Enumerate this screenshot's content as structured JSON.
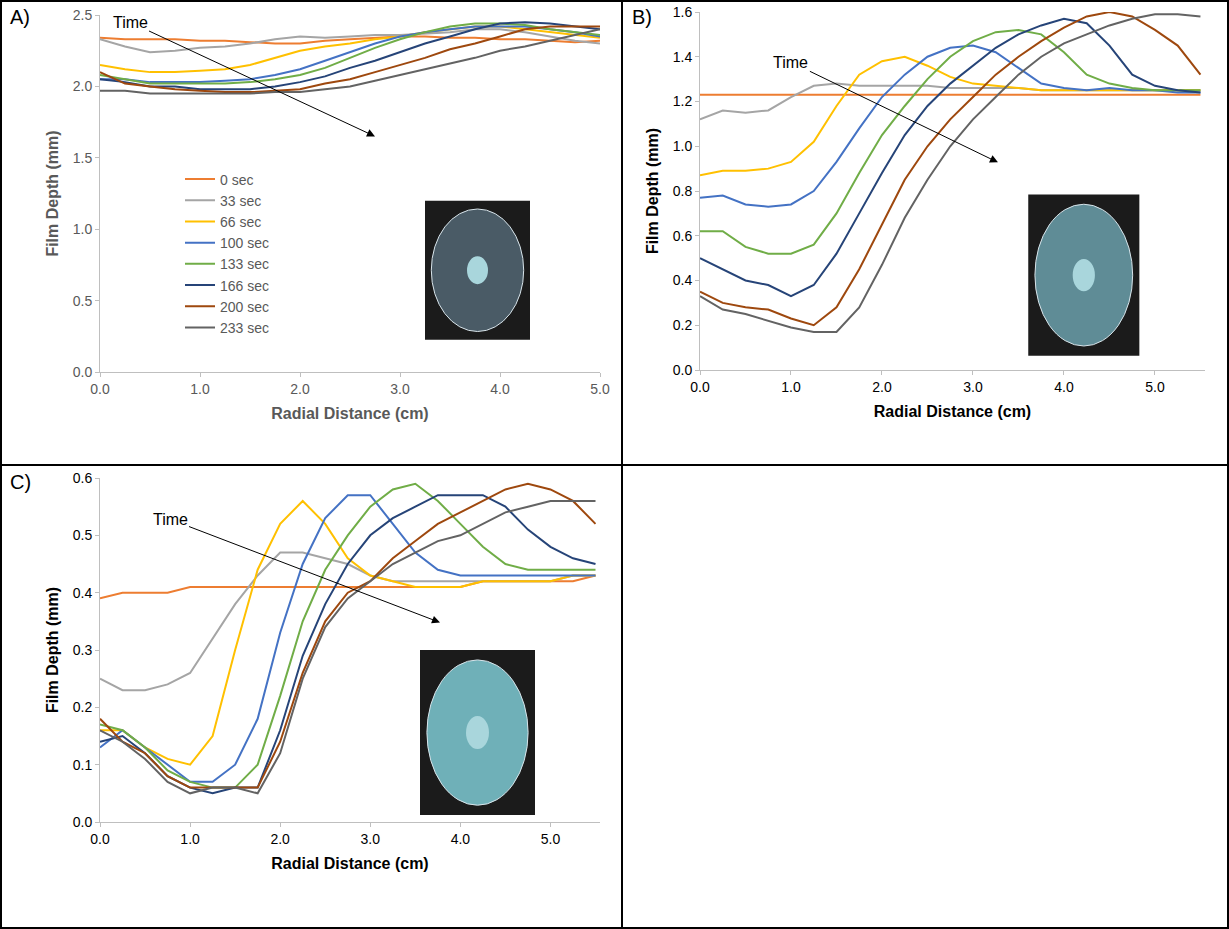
{
  "chart_data": [
    {
      "type": "line",
      "panel_label": "A)",
      "x_label": "Radial Distance (cm)",
      "y_label": "Film Depth (mm)",
      "annotation": "Time",
      "grid": false,
      "legend": "lower left",
      "xlim": [
        0,
        5
      ],
      "xticks": [
        {
          "value": 0,
          "label": "0.0"
        },
        {
          "value": 1,
          "label": "1.0"
        },
        {
          "value": 2,
          "label": "2.0"
        },
        {
          "value": 3,
          "label": "3.0"
        },
        {
          "value": 4,
          "label": "4.0"
        },
        {
          "value": 5,
          "label": "5.0"
        }
      ],
      "ylim": [
        0,
        2.5
      ],
      "yticks": [
        {
          "value": 0,
          "label": "0.0"
        },
        0.5,
        {
          "value": 1,
          "label": "1.0"
        },
        1.5,
        {
          "value": 2,
          "label": "2.0"
        },
        2.5
      ],
      "x": [
        0,
        0.25,
        0.5,
        0.75,
        1,
        1.25,
        1.5,
        1.75,
        2,
        2.25,
        2.5,
        2.75,
        3,
        3.25,
        3.5,
        3.75,
        4,
        4.25,
        4.5,
        4.75,
        5
      ],
      "series": [
        {
          "name": "0 sec",
          "color": "#ed7d31",
          "values": [
            2.34,
            2.33,
            2.33,
            2.33,
            2.32,
            2.32,
            2.31,
            2.3,
            2.3,
            2.32,
            2.33,
            2.34,
            2.35,
            2.35,
            2.34,
            2.34,
            2.33,
            2.33,
            2.32,
            2.31,
            2.32
          ]
        },
        {
          "name": "33 sec",
          "color": "#a5a5a5",
          "values": [
            2.33,
            2.28,
            2.24,
            2.25,
            2.27,
            2.28,
            2.3,
            2.33,
            2.35,
            2.34,
            2.35,
            2.36,
            2.36,
            2.37,
            2.38,
            2.4,
            2.4,
            2.38,
            2.35,
            2.32,
            2.3
          ]
        },
        {
          "name": "66 sec",
          "color": "#ffc000",
          "values": [
            2.15,
            2.12,
            2.1,
            2.1,
            2.11,
            2.12,
            2.15,
            2.2,
            2.25,
            2.28,
            2.3,
            2.33,
            2.35,
            2.38,
            2.4,
            2.42,
            2.42,
            2.4,
            2.38,
            2.36,
            2.34
          ]
        },
        {
          "name": "100 sec",
          "color": "#4472c4",
          "values": [
            2.05,
            2.05,
            2.03,
            2.03,
            2.03,
            2.04,
            2.05,
            2.08,
            2.12,
            2.18,
            2.24,
            2.3,
            2.35,
            2.38,
            2.4,
            2.42,
            2.42,
            2.42,
            2.4,
            2.38,
            2.35
          ]
        },
        {
          "name": "133 sec",
          "color": "#70ad47",
          "values": [
            2.08,
            2.05,
            2.02,
            2.02,
            2.02,
            2.02,
            2.03,
            2.05,
            2.08,
            2.13,
            2.2,
            2.27,
            2.33,
            2.38,
            2.42,
            2.44,
            2.44,
            2.43,
            2.4,
            2.38,
            2.36
          ]
        },
        {
          "name": "166 sec",
          "color": "#264478",
          "values": [
            2.05,
            2.03,
            2.0,
            2.0,
            1.98,
            1.98,
            1.98,
            2.0,
            2.03,
            2.07,
            2.13,
            2.18,
            2.24,
            2.3,
            2.35,
            2.4,
            2.44,
            2.45,
            2.44,
            2.42,
            2.4
          ]
        },
        {
          "name": "200 sec",
          "color": "#9e480e",
          "values": [
            2.1,
            2.02,
            2.0,
            1.98,
            1.97,
            1.96,
            1.96,
            1.97,
            1.98,
            2.02,
            2.05,
            2.1,
            2.15,
            2.2,
            2.26,
            2.3,
            2.35,
            2.4,
            2.42,
            2.42,
            2.42
          ]
        },
        {
          "name": "233 sec",
          "color": "#636363",
          "values": [
            1.97,
            1.97,
            1.95,
            1.95,
            1.95,
            1.95,
            1.95,
            1.96,
            1.96,
            1.98,
            2.0,
            2.04,
            2.08,
            2.12,
            2.16,
            2.2,
            2.25,
            2.28,
            2.32,
            2.36,
            2.4
          ]
        }
      ]
    },
    {
      "type": "line",
      "panel_label": "B)",
      "x_label": "Radial Distance (cm)",
      "y_label": "Film Depth (mm)",
      "annotation": "Time",
      "grid": false,
      "xlim": [
        0,
        5.55
      ],
      "xticks": [
        {
          "value": 0,
          "label": "0.0"
        },
        {
          "value": 1,
          "label": "1.0"
        },
        {
          "value": 2,
          "label": "2.0"
        },
        {
          "value": 3,
          "label": "3.0"
        },
        {
          "value": 4,
          "label": "4.0"
        },
        {
          "value": 5,
          "label": "5.0"
        }
      ],
      "ylim": [
        0,
        1.6
      ],
      "yticks": [
        {
          "value": 0,
          "label": "0.0"
        },
        0.2,
        0.4,
        0.6,
        0.8,
        {
          "value": 1,
          "label": "1.0"
        },
        1.2,
        1.4,
        1.6
      ],
      "x": [
        0,
        0.25,
        0.5,
        0.75,
        1,
        1.25,
        1.5,
        1.75,
        2,
        2.25,
        2.5,
        2.75,
        3,
        3.25,
        3.5,
        3.75,
        4,
        4.25,
        4.5,
        4.75,
        5,
        5.25,
        5.5
      ],
      "series": [
        {
          "name": "0 sec",
          "color": "#ed7d31",
          "values": [
            1.23,
            1.23,
            1.23,
            1.23,
            1.23,
            1.23,
            1.23,
            1.23,
            1.23,
            1.23,
            1.23,
            1.23,
            1.23,
            1.23,
            1.23,
            1.23,
            1.23,
            1.23,
            1.23,
            1.23,
            1.23,
            1.23,
            1.23
          ]
        },
        {
          "name": "33 sec",
          "color": "#a5a5a5",
          "values": [
            1.12,
            1.16,
            1.15,
            1.16,
            1.22,
            1.27,
            1.28,
            1.27,
            1.27,
            1.27,
            1.27,
            1.26,
            1.26,
            1.26,
            1.26,
            1.25,
            1.25,
            1.25,
            1.25,
            1.25,
            1.25,
            1.25,
            1.25
          ]
        },
        {
          "name": "66 sec",
          "color": "#ffc000",
          "values": [
            0.87,
            0.89,
            0.89,
            0.9,
            0.93,
            1.02,
            1.18,
            1.32,
            1.38,
            1.4,
            1.36,
            1.31,
            1.28,
            1.27,
            1.26,
            1.25,
            1.25,
            1.25,
            1.25,
            1.25,
            1.25,
            1.25,
            1.25
          ]
        },
        {
          "name": "100 sec",
          "color": "#4472c4",
          "values": [
            0.77,
            0.78,
            0.74,
            0.73,
            0.74,
            0.8,
            0.93,
            1.08,
            1.22,
            1.32,
            1.4,
            1.44,
            1.45,
            1.42,
            1.35,
            1.28,
            1.26,
            1.25,
            1.26,
            1.25,
            1.25,
            1.24,
            1.24
          ]
        },
        {
          "name": "133 sec",
          "color": "#70ad47",
          "values": [
            0.62,
            0.62,
            0.55,
            0.52,
            0.52,
            0.56,
            0.7,
            0.88,
            1.05,
            1.18,
            1.3,
            1.4,
            1.47,
            1.51,
            1.52,
            1.5,
            1.42,
            1.32,
            1.28,
            1.26,
            1.25,
            1.25,
            1.25
          ]
        },
        {
          "name": "166 sec",
          "color": "#264478",
          "values": [
            0.5,
            0.45,
            0.4,
            0.38,
            0.33,
            0.38,
            0.52,
            0.7,
            0.88,
            1.05,
            1.18,
            1.28,
            1.36,
            1.44,
            1.5,
            1.54,
            1.57,
            1.55,
            1.45,
            1.32,
            1.27,
            1.25,
            1.24
          ]
        },
        {
          "name": "200 sec",
          "color": "#9e480e",
          "values": [
            0.35,
            0.3,
            0.28,
            0.27,
            0.23,
            0.2,
            0.28,
            0.45,
            0.65,
            0.85,
            1.0,
            1.12,
            1.22,
            1.32,
            1.4,
            1.47,
            1.53,
            1.58,
            1.6,
            1.58,
            1.52,
            1.45,
            1.32
          ]
        },
        {
          "name": "233 sec",
          "color": "#636363",
          "values": [
            0.33,
            0.27,
            0.25,
            0.22,
            0.19,
            0.17,
            0.17,
            0.28,
            0.47,
            0.68,
            0.85,
            1.0,
            1.12,
            1.22,
            1.32,
            1.4,
            1.46,
            1.5,
            1.54,
            1.57,
            1.59,
            1.59,
            1.58
          ]
        }
      ]
    },
    {
      "type": "line",
      "panel_label": "C)",
      "x_label": "Radial Distance (cm)",
      "y_label": "Film Depth (mm)",
      "annotation": "Time",
      "grid": false,
      "xlim": [
        0,
        5.55
      ],
      "xticks": [
        {
          "value": 0,
          "label": "0.0"
        },
        {
          "value": 1,
          "label": "1.0"
        },
        {
          "value": 2,
          "label": "2.0"
        },
        {
          "value": 3,
          "label": "3.0"
        },
        {
          "value": 4,
          "label": "4.0"
        },
        {
          "value": 5,
          "label": "5.0"
        }
      ],
      "ylim": [
        0,
        0.6
      ],
      "yticks": [
        {
          "value": 0,
          "label": "0.0"
        },
        0.1,
        0.2,
        0.3,
        0.4,
        0.5,
        0.6
      ],
      "x": [
        0,
        0.25,
        0.5,
        0.75,
        1,
        1.25,
        1.5,
        1.75,
        2,
        2.25,
        2.5,
        2.75,
        3,
        3.25,
        3.5,
        3.75,
        4,
        4.25,
        4.5,
        4.75,
        5,
        5.25,
        5.5
      ],
      "series": [
        {
          "name": "0 sec",
          "color": "#ed7d31",
          "values": [
            0.39,
            0.4,
            0.4,
            0.4,
            0.41,
            0.41,
            0.41,
            0.41,
            0.41,
            0.41,
            0.41,
            0.41,
            0.41,
            0.41,
            0.41,
            0.41,
            0.41,
            0.42,
            0.42,
            0.42,
            0.42,
            0.42,
            0.43
          ]
        },
        {
          "name": "33 sec",
          "color": "#a5a5a5",
          "values": [
            0.25,
            0.23,
            0.23,
            0.24,
            0.26,
            0.32,
            0.38,
            0.43,
            0.47,
            0.47,
            0.46,
            0.45,
            0.43,
            0.42,
            0.42,
            0.42,
            0.42,
            0.42,
            0.42,
            0.42,
            0.42,
            0.43,
            0.43
          ]
        },
        {
          "name": "66 sec",
          "color": "#ffc000",
          "values": [
            0.16,
            0.16,
            0.13,
            0.11,
            0.1,
            0.15,
            0.3,
            0.44,
            0.52,
            0.56,
            0.52,
            0.46,
            0.43,
            0.42,
            0.41,
            0.41,
            0.41,
            0.42,
            0.42,
            0.42,
            0.42,
            0.43,
            0.43
          ]
        },
        {
          "name": "100 sec",
          "color": "#4472c4",
          "values": [
            0.13,
            0.16,
            0.13,
            0.1,
            0.07,
            0.07,
            0.1,
            0.18,
            0.33,
            0.45,
            0.53,
            0.57,
            0.57,
            0.52,
            0.47,
            0.44,
            0.43,
            0.43,
            0.43,
            0.43,
            0.43,
            0.43,
            0.43
          ]
        },
        {
          "name": "133 sec",
          "color": "#70ad47",
          "values": [
            0.17,
            0.16,
            0.13,
            0.09,
            0.07,
            0.06,
            0.06,
            0.1,
            0.22,
            0.35,
            0.44,
            0.5,
            0.55,
            0.58,
            0.59,
            0.56,
            0.52,
            0.48,
            0.45,
            0.44,
            0.44,
            0.44,
            0.44
          ]
        },
        {
          "name": "166 sec",
          "color": "#264478",
          "values": [
            0.14,
            0.15,
            0.12,
            0.08,
            0.06,
            0.05,
            0.06,
            0.06,
            0.16,
            0.29,
            0.38,
            0.45,
            0.5,
            0.53,
            0.55,
            0.57,
            0.57,
            0.57,
            0.55,
            0.51,
            0.48,
            0.46,
            0.45
          ]
        },
        {
          "name": "200 sec",
          "color": "#9e480e",
          "values": [
            0.18,
            0.14,
            0.12,
            0.08,
            0.06,
            0.06,
            0.06,
            0.06,
            0.14,
            0.26,
            0.35,
            0.4,
            0.42,
            0.46,
            0.49,
            0.52,
            0.54,
            0.56,
            0.58,
            0.59,
            0.58,
            0.56,
            0.52
          ]
        },
        {
          "name": "233 sec",
          "color": "#636363",
          "values": [
            0.16,
            0.14,
            0.11,
            0.07,
            0.05,
            0.06,
            0.06,
            0.05,
            0.12,
            0.25,
            0.34,
            0.39,
            0.42,
            0.45,
            0.47,
            0.49,
            0.5,
            0.52,
            0.54,
            0.55,
            0.56,
            0.56,
            0.56
          ]
        }
      ]
    }
  ]
}
